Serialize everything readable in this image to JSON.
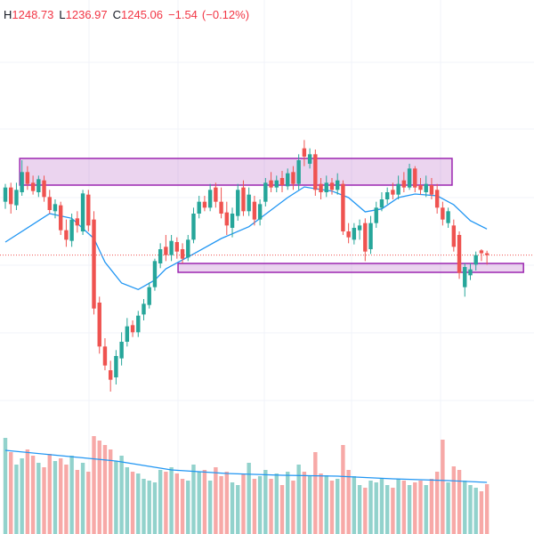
{
  "chart_data": {
    "type": "candlestick",
    "header": {
      "labels": [
        "H",
        "L",
        "C"
      ],
      "change": {
        "value": -1.54,
        "label": "−1.54"
      },
      "change_pct": {
        "value": -0.12,
        "label": "(−0.12%)"
      }
    },
    "up_color": "#26a69a",
    "down_color": "#ef5350",
    "ma_color": "#2196f3",
    "zone_color": "#9c27b0",
    "ylim": [
      1100,
      1460
    ],
    "volume_lim": [
      0,
      120
    ],
    "open": [
      1290,
      1302,
      1287,
      1298,
      1315,
      1306,
      1298,
      1308,
      1294,
      1282,
      1287,
      1266,
      1257,
      1276,
      1265,
      1296,
      1275,
      1205,
      1168,
      1148,
      1142,
      1158,
      1172,
      1186,
      1180,
      1195,
      1203,
      1218,
      1238,
      1252,
      1245,
      1256,
      1250,
      1243,
      1258,
      1280,
      1290,
      1285,
      1302,
      1290,
      1281,
      1268,
      1278,
      1302,
      1282,
      1290,
      1275,
      1290,
      1308,
      1302,
      1310,
      1303,
      1315,
      1305,
      1335,
      1322,
      1330,
      1305,
      1298,
      1306,
      1300,
      1305,
      1265,
      1258,
      1266,
      1272,
      1250,
      1272,
      1285,
      1292,
      1300,
      1296,
      1308,
      1302,
      1318,
      1304,
      1298,
      1304,
      1300,
      1285,
      1272,
      1270,
      1262,
      1218,
      1228,
      1237,
      1249,
      1246.6
    ],
    "high": [
      1305,
      1306,
      1306,
      1325,
      1320,
      1312,
      1312,
      1312,
      1300,
      1292,
      1290,
      1275,
      1280,
      1282,
      1300,
      1300,
      1282,
      1210,
      1175,
      1156,
      1165,
      1180,
      1192,
      1190,
      1198,
      1208,
      1222,
      1242,
      1255,
      1262,
      1262,
      1260,
      1255,
      1262,
      1285,
      1295,
      1295,
      1305,
      1306,
      1302,
      1290,
      1285,
      1305,
      1308,
      1302,
      1295,
      1292,
      1310,
      1315,
      1312,
      1316,
      1318,
      1320,
      1330,
      1342,
      1335,
      1334,
      1310,
      1312,
      1310,
      1314,
      1308,
      1272,
      1272,
      1275,
      1276,
      1278,
      1290,
      1298,
      1302,
      1306,
      1312,
      1315,
      1322,
      1320,
      1310,
      1312,
      1310,
      1305,
      1290,
      1285,
      1275,
      1265,
      1238,
      1238,
      1248,
      1250,
      1248.73
    ],
    "low": [
      1284,
      1280,
      1283,
      1295,
      1300,
      1296,
      1294,
      1290,
      1280,
      1276,
      1262,
      1252,
      1252,
      1264,
      1262,
      1265,
      1195,
      1162,
      1148,
      1130,
      1136,
      1152,
      1168,
      1176,
      1176,
      1190,
      1200,
      1215,
      1234,
      1240,
      1240,
      1242,
      1238,
      1240,
      1255,
      1276,
      1282,
      1282,
      1285,
      1276,
      1262,
      1260,
      1274,
      1278,
      1278,
      1270,
      1270,
      1286,
      1298,
      1298,
      1298,
      1300,
      1300,
      1300,
      1320,
      1318,
      1295,
      1292,
      1294,
      1296,
      1296,
      1262,
      1255,
      1254,
      1258,
      1240,
      1246,
      1268,
      1282,
      1288,
      1292,
      1292,
      1298,
      1300,
      1298,
      1296,
      1294,
      1292,
      1280,
      1270,
      1268,
      1248,
      1225,
      1210,
      1224,
      1232,
      1240,
      1236.97
    ],
    "close": [
      1302,
      1288,
      1300,
      1315,
      1305,
      1299,
      1309,
      1294,
      1283,
      1288,
      1266,
      1258,
      1275,
      1270,
      1297,
      1270,
      1200,
      1168,
      1152,
      1140,
      1160,
      1172,
      1185,
      1180,
      1194,
      1204,
      1218,
      1240,
      1250,
      1245,
      1257,
      1248,
      1242,
      1258,
      1280,
      1290,
      1285,
      1300,
      1290,
      1280,
      1270,
      1280,
      1300,
      1282,
      1296,
      1275,
      1288,
      1306,
      1302,
      1308,
      1304,
      1314,
      1305,
      1325,
      1328,
      1330,
      1300,
      1298,
      1306,
      1300,
      1308,
      1265,
      1260,
      1268,
      1270,
      1248,
      1272,
      1285,
      1292,
      1298,
      1296,
      1305,
      1302,
      1318,
      1302,
      1300,
      1305,
      1296,
      1285,
      1275,
      1282,
      1252,
      1230,
      1235,
      1233,
      1245,
      1246.6,
      1245.06
    ],
    "volume": [
      108,
      92,
      78,
      85,
      95,
      88,
      80,
      75,
      90,
      82,
      85,
      78,
      88,
      72,
      80,
      70,
      110,
      105,
      100,
      95,
      82,
      88,
      75,
      70,
      68,
      62,
      60,
      58,
      72,
      70,
      75,
      68,
      62,
      60,
      78,
      70,
      72,
      60,
      75,
      65,
      70,
      58,
      55,
      68,
      80,
      62,
      65,
      72,
      62,
      68,
      55,
      70,
      60,
      78,
      70,
      65,
      92,
      68,
      66,
      60,
      62,
      100,
      72,
      65,
      55,
      52,
      60,
      58,
      62,
      55,
      52,
      62,
      60,
      55,
      58,
      60,
      55,
      62,
      70,
      106,
      58,
      76,
      72,
      60,
      55,
      52,
      48,
      56
    ],
    "ma_index": [
      0,
      8,
      12,
      16,
      18,
      21,
      24,
      27,
      29,
      34,
      39,
      44,
      48,
      51,
      54,
      56,
      59,
      62,
      65,
      68,
      71,
      74,
      78,
      81,
      84,
      87
    ],
    "ma_values": [
      1256,
      1280,
      1276,
      1259,
      1239,
      1221.5,
      1216,
      1224,
      1233.5,
      1246,
      1259,
      1269,
      1283,
      1293.5,
      1302.5,
      1301,
      1299,
      1293.5,
      1281.5,
      1284,
      1293.5,
      1296.5,
      1295,
      1287.5,
      1274,
      1267
    ],
    "volume_ma_index": [
      0,
      10,
      20,
      30,
      40,
      50,
      60,
      70,
      80,
      87
    ],
    "volume_ma_values": [
      94,
      88,
      82,
      72,
      68,
      66,
      65,
      62,
      60,
      58
    ],
    "zones": [
      {
        "start": 2.6,
        "end": 80.7,
        "top": 1326.5,
        "bottom": 1304
      },
      {
        "start": 31.2,
        "end": 93.6,
        "top": 1238,
        "bottom": 1230.5
      }
    ]
  }
}
